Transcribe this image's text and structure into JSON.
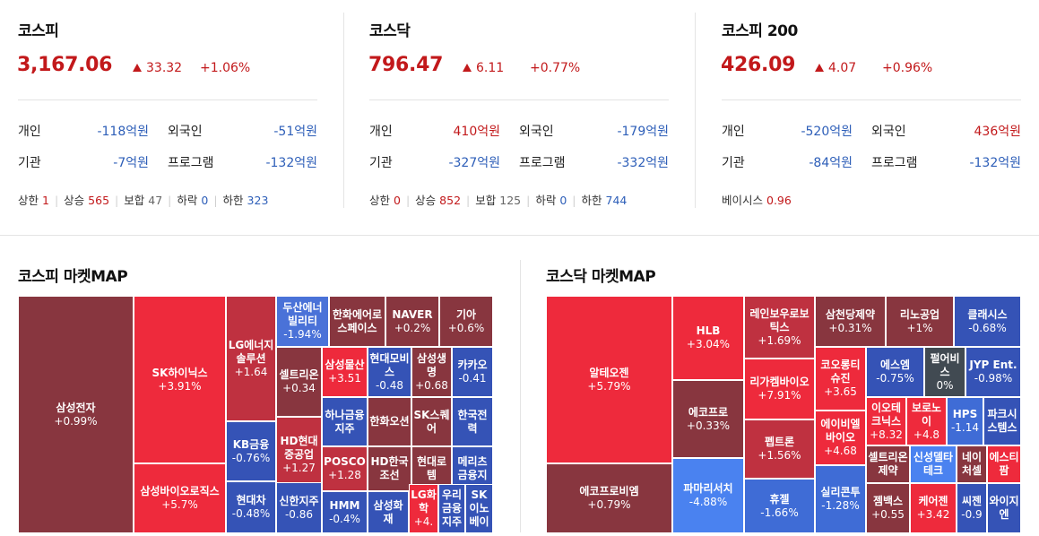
{
  "markets": [
    {
      "name": "코스피",
      "value": "3,167.06",
      "change": "33.32",
      "percent": "+1.06%",
      "rows": [
        {
          "l1": "개인",
          "v1": "-118억원",
          "c1": "neg",
          "l2": "외국인",
          "v2": "-51억원",
          "c2": "neg"
        },
        {
          "l1": "기관",
          "v1": "-7억원",
          "c1": "neg",
          "l2": "프로그램",
          "v2": "-132억원",
          "c2": "neg"
        }
      ],
      "stats": [
        {
          "label": "상한",
          "value": "1",
          "c": "pos"
        },
        {
          "label": "상승",
          "value": "565",
          "c": "pos"
        },
        {
          "label": "보합",
          "value": "47",
          "c": "gray"
        },
        {
          "label": "하락",
          "value": "0",
          "c": "neg"
        },
        {
          "label": "하한",
          "value": "323",
          "c": "neg"
        }
      ]
    },
    {
      "name": "코스닥",
      "value": "796.47",
      "change": "6.11",
      "percent": "+0.77%",
      "rows": [
        {
          "l1": "개인",
          "v1": "410억원",
          "c1": "pos",
          "l2": "외국인",
          "v2": "-179억원",
          "c2": "neg"
        },
        {
          "l1": "기관",
          "v1": "-327억원",
          "c1": "neg",
          "l2": "프로그램",
          "v2": "-332억원",
          "c2": "neg"
        }
      ],
      "stats": [
        {
          "label": "상한",
          "value": "0",
          "c": "pos"
        },
        {
          "label": "상승",
          "value": "852",
          "c": "pos"
        },
        {
          "label": "보합",
          "value": "125",
          "c": "gray"
        },
        {
          "label": "하락",
          "value": "0",
          "c": "neg"
        },
        {
          "label": "하한",
          "value": "744",
          "c": "neg"
        }
      ]
    },
    {
      "name": "코스피 200",
      "value": "426.09",
      "change": "4.07",
      "percent": "+0.96%",
      "rows": [
        {
          "l1": "개인",
          "v1": "-520억원",
          "c1": "neg",
          "l2": "외국인",
          "v2": "436억원",
          "c2": "pos"
        },
        {
          "l1": "기관",
          "v1": "-84억원",
          "c1": "neg",
          "l2": "프로그램",
          "v2": "-132억원",
          "c2": "neg"
        }
      ],
      "stats": [
        {
          "label": "베이시스",
          "value": "0.96",
          "c": "pos"
        }
      ]
    }
  ],
  "colors": {
    "up_strong": "#ee2a3c",
    "up_mid": "#bf3140",
    "up_weak": "#88363f",
    "flat": "#414a52",
    "down_weak": "#3553b6",
    "down_strong": "#4a82f0",
    "text_up": "#c2191b",
    "text_down": "#2d5eb8"
  },
  "kospi_map": {
    "title": "코스피 마켓MAP",
    "cells": [
      {
        "name": "삼성전자",
        "chg": "+0.99%",
        "c": "#88363f"
      },
      {
        "name": "SK하이닉스",
        "chg": "+3.91%",
        "c": "#ee2a3c"
      },
      {
        "name": "삼성바이오로직스",
        "chg": "+5.7%",
        "c": "#ee2a3c"
      },
      {
        "name": "LG에너지솔루션",
        "chg": "+1.64",
        "c": "#bf3140"
      },
      {
        "name": "KB금융",
        "chg": "-0.76%",
        "c": "#3553b6"
      },
      {
        "name": "현대차",
        "chg": "-0.48%",
        "c": "#3553b6"
      },
      {
        "name": "두산에너빌리티",
        "chg": "-1.94%",
        "c": "#4a72d8"
      },
      {
        "name": "한화에어로스페이스",
        "chg": "",
        "c": "#88363f"
      },
      {
        "name": "NAVER",
        "chg": "+0.2%",
        "c": "#88363f"
      },
      {
        "name": "기아",
        "chg": "+0.6%",
        "c": "#88363f"
      },
      {
        "name": "셀트리온",
        "chg": "+0.34",
        "c": "#88363f"
      },
      {
        "name": "삼성물산",
        "chg": "+3.51",
        "c": "#ee2a3c"
      },
      {
        "name": "현대모비스",
        "chg": "-0.48",
        "c": "#3553b6"
      },
      {
        "name": "삼성생명",
        "chg": "+0.68",
        "c": "#88363f"
      },
      {
        "name": "카카오",
        "chg": "-0.41",
        "c": "#3553b6"
      },
      {
        "name": "하나금융지주",
        "chg": "",
        "c": "#3553b6"
      },
      {
        "name": "한화오션",
        "chg": "",
        "c": "#88363f"
      },
      {
        "name": "SK스퀘어",
        "chg": "",
        "c": "#88363f"
      },
      {
        "name": "한국전력",
        "chg": "",
        "c": "#3553b6"
      },
      {
        "name": "HD현대중공업",
        "chg": "+1.27",
        "c": "#bf3140"
      },
      {
        "name": "POSCO",
        "chg": "+1.28",
        "c": "#bf3140"
      },
      {
        "name": "HD한국조선",
        "chg": "",
        "c": "#88363f"
      },
      {
        "name": "현대로템",
        "chg": "",
        "c": "#88363f"
      },
      {
        "name": "메리츠금융지",
        "chg": "",
        "c": "#3553b6"
      },
      {
        "name": "신한지주",
        "chg": "-0.86",
        "c": "#3553b6"
      },
      {
        "name": "HMM",
        "chg": "-0.4%",
        "c": "#3553b6"
      },
      {
        "name": "삼성화재",
        "chg": "",
        "c": "#3553b6"
      },
      {
        "name": "LG화학",
        "chg": "+4.",
        "c": "#ee2a3c"
      },
      {
        "name": "우리금융지주",
        "chg": "",
        "c": "#3553b6"
      },
      {
        "name": "SK이노베이",
        "chg": "",
        "c": "#3553b6"
      }
    ]
  },
  "kosdaq_map": {
    "title": "코스닥 마켓MAP",
    "cells": [
      {
        "name": "알테오젠",
        "chg": "+5.79%",
        "c": "#ee2a3c"
      },
      {
        "name": "에코프로비엠",
        "chg": "+0.79%",
        "c": "#88363f"
      },
      {
        "name": "HLB",
        "chg": "+3.04%",
        "c": "#ee2a3c"
      },
      {
        "name": "에코프로",
        "chg": "+0.33%",
        "c": "#88363f"
      },
      {
        "name": "파마리서치",
        "chg": "-4.88%",
        "c": "#4a82f0"
      },
      {
        "name": "레인보우로보틱스",
        "chg": "+1.69%",
        "c": "#bf3140"
      },
      {
        "name": "리가켐바이오",
        "chg": "+7.91%",
        "c": "#ee2a3c"
      },
      {
        "name": "펩트론",
        "chg": "+1.56%",
        "c": "#bf3140"
      },
      {
        "name": "휴젤",
        "chg": "-1.66%",
        "c": "#3f6cd6"
      },
      {
        "name": "삼천당제약",
        "chg": "+0.31%",
        "c": "#88363f"
      },
      {
        "name": "리노공업",
        "chg": "+1%",
        "c": "#88363f"
      },
      {
        "name": "클래시스",
        "chg": "-0.68%",
        "c": "#3553b6"
      },
      {
        "name": "코오롱티슈진",
        "chg": "+3.65",
        "c": "#ee2a3c"
      },
      {
        "name": "에스엠",
        "chg": "-0.75%",
        "c": "#3553b6"
      },
      {
        "name": "펄어비스",
        "chg": "0%",
        "c": "#414a52"
      },
      {
        "name": "JYP Ent.",
        "chg": "-0.98%",
        "c": "#3553b6"
      },
      {
        "name": "에이비엘바이오",
        "chg": "+4.68",
        "c": "#ee2a3c"
      },
      {
        "name": "이오테크닉스",
        "chg": "+8.32",
        "c": "#ee2a3c"
      },
      {
        "name": "보로노이",
        "chg": "+4.8",
        "c": "#ee2a3c"
      },
      {
        "name": "HPS",
        "chg": "-1.14",
        "c": "#3f6cd6"
      },
      {
        "name": "파크시스템스",
        "chg": "",
        "c": "#3553b6"
      },
      {
        "name": "셀트리온제약",
        "chg": "",
        "c": "#88363f"
      },
      {
        "name": "신성델타테크",
        "chg": "",
        "c": "#4a82f0"
      },
      {
        "name": "네이처셀",
        "chg": "",
        "c": "#88363f"
      },
      {
        "name": "에스티팜",
        "chg": "",
        "c": "#ee2a3c"
      },
      {
        "name": "실리콘투",
        "chg": "-1.28%",
        "c": "#3f6cd6"
      },
      {
        "name": "젬백스",
        "chg": "+0.55",
        "c": "#88363f"
      },
      {
        "name": "케어젠",
        "chg": "+3.42",
        "c": "#ee2a3c"
      },
      {
        "name": "씨젠",
        "chg": "-0.9",
        "c": "#3553b6"
      },
      {
        "name": "와이지엔",
        "chg": "",
        "c": "#3553b6"
      }
    ]
  }
}
